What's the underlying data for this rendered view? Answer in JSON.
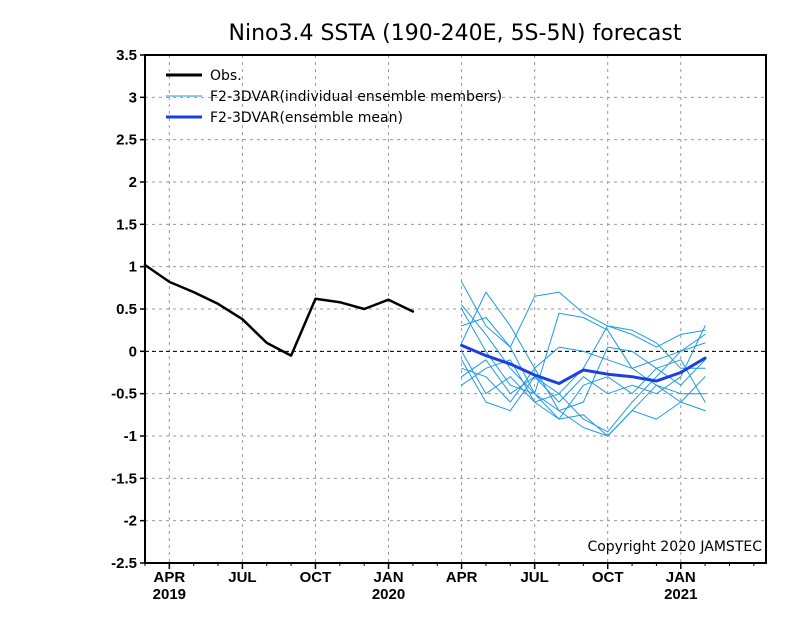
{
  "chart_data": {
    "type": "line",
    "title": "Nino3.4 SSTA (190-240E, 5S-5N) forecast",
    "copyright": "Copyright 2020 JAMSTEC",
    "xlabel": "",
    "ylabel": "",
    "ylim": [
      -2.5,
      3.5
    ],
    "y_ticks": [
      -2.5,
      -2,
      -1.5,
      -1,
      -0.5,
      0,
      0.5,
      1,
      1.5,
      2,
      2.5,
      3,
      3.5
    ],
    "y_tick_labels": [
      "-2.5",
      "-2",
      "-1.5",
      "-1",
      "-0.5",
      "0",
      "0.5",
      "1",
      "1.5",
      "2",
      "2.5",
      "3",
      "3.5"
    ],
    "x_unit": "months since Jan 2019",
    "xlim": [
      2,
      27.5
    ],
    "x_ticks": [
      {
        "x": 3,
        "month": "APR",
        "year": "2019"
      },
      {
        "x": 6,
        "month": "JUL",
        "year": ""
      },
      {
        "x": 9,
        "month": "OCT",
        "year": ""
      },
      {
        "x": 12,
        "month": "JAN",
        "year": "2020"
      },
      {
        "x": 15,
        "month": "APR",
        "year": ""
      },
      {
        "x": 18,
        "month": "JUL",
        "year": ""
      },
      {
        "x": 21,
        "month": "OCT",
        "year": ""
      },
      {
        "x": 24,
        "month": "JAN",
        "year": "2021"
      }
    ],
    "grid": true,
    "zero_line": true,
    "legend": {
      "position": "top-left",
      "entries": [
        {
          "label": "Obs.",
          "color": "#000000",
          "style": "thick"
        },
        {
          "label": "F2-3DVAR(individual ensemble members)",
          "color": "#1e9be6",
          "style": "thin"
        },
        {
          "label": "F2-3DVAR(ensemble mean)",
          "color": "#1c3fe0",
          "style": "thick"
        }
      ]
    },
    "series": [
      {
        "name": "Obs.",
        "role": "obs",
        "color": "#000000",
        "x": [
          2,
          3,
          4,
          5,
          6,
          7,
          8,
          9,
          10,
          11,
          12,
          13
        ],
        "y": [
          1.02,
          0.82,
          0.7,
          0.56,
          0.38,
          0.1,
          -0.05,
          0.62,
          0.58,
          0.5,
          0.61,
          0.47
        ]
      },
      {
        "name": "member 1",
        "role": "member",
        "color": "#1e9be6",
        "x": [
          15,
          16,
          17,
          18,
          19,
          20,
          21,
          22,
          23,
          24,
          25
        ],
        "y": [
          0.82,
          0.3,
          0.05,
          -0.5,
          -0.8,
          -0.75,
          -1.0,
          -0.7,
          -0.8,
          -0.6,
          -0.3
        ]
      },
      {
        "name": "member 2",
        "role": "member",
        "color": "#1e9be6",
        "x": [
          15,
          16,
          17,
          18,
          19,
          20,
          21,
          22,
          23,
          24,
          25
        ],
        "y": [
          0.55,
          0.2,
          -0.2,
          -0.5,
          -0.7,
          -0.6,
          0.05,
          0.0,
          -0.2,
          -0.4,
          -0.1
        ]
      },
      {
        "name": "member 3",
        "role": "member",
        "color": "#1e9be6",
        "x": [
          15,
          16,
          17,
          18,
          19,
          20,
          21,
          22,
          23,
          24,
          25
        ],
        "y": [
          0.3,
          0.4,
          0.05,
          0.65,
          0.7,
          0.45,
          0.3,
          0.2,
          0.05,
          0.2,
          0.25
        ]
      },
      {
        "name": "member 4",
        "role": "member",
        "color": "#1e9be6",
        "x": [
          15,
          16,
          17,
          18,
          19,
          20,
          21,
          22,
          23,
          24,
          25
        ],
        "y": [
          0.1,
          0.7,
          0.3,
          -0.2,
          -0.7,
          -0.9,
          -1.0,
          -0.7,
          -0.4,
          -0.5,
          -0.5
        ]
      },
      {
        "name": "member 5",
        "role": "member",
        "color": "#1e9be6",
        "x": [
          15,
          16,
          17,
          18,
          19,
          20,
          21,
          22,
          23,
          24,
          25
        ],
        "y": [
          0.0,
          -0.5,
          -0.3,
          -0.6,
          -0.5,
          -0.2,
          0.3,
          0.25,
          0.1,
          -0.2,
          -0.2
        ]
      },
      {
        "name": "member 6",
        "role": "member",
        "color": "#1e9be6",
        "x": [
          15,
          16,
          17,
          18,
          19,
          20,
          21,
          22,
          23,
          24,
          25
        ],
        "y": [
          -0.2,
          -0.3,
          -0.6,
          -0.2,
          0.05,
          0.0,
          -0.1,
          -0.2,
          -0.4,
          -0.6,
          -0.7
        ]
      },
      {
        "name": "member 7",
        "role": "member",
        "color": "#1e9be6",
        "x": [
          15,
          16,
          17,
          18,
          19,
          20,
          21,
          22,
          23,
          24,
          25
        ],
        "y": [
          -0.3,
          -0.1,
          -0.5,
          -0.3,
          -0.5,
          -0.8,
          -0.95,
          -0.6,
          -0.3,
          0.0,
          0.1
        ]
      },
      {
        "name": "member 8",
        "role": "member",
        "color": "#1e9be6",
        "x": [
          15,
          16,
          17,
          18,
          19,
          20,
          21,
          22,
          23,
          24,
          25
        ],
        "y": [
          -0.4,
          -0.2,
          -0.1,
          -0.6,
          -0.8,
          -0.4,
          -0.3,
          -0.5,
          -0.2,
          -0.1,
          -0.6
        ]
      },
      {
        "name": "member 9",
        "role": "member",
        "color": "#1e9be6",
        "x": [
          15,
          16,
          17,
          18,
          19,
          20,
          21,
          22,
          23,
          24,
          25
        ],
        "y": [
          0.5,
          0.0,
          -0.4,
          -0.5,
          0.45,
          0.4,
          0.25,
          -0.2,
          -0.1,
          0.0,
          0.2
        ]
      },
      {
        "name": "member 10",
        "role": "member",
        "color": "#1e9be6",
        "x": [
          15,
          16,
          17,
          18,
          19,
          20,
          21,
          22,
          23,
          24,
          25
        ],
        "y": [
          -0.1,
          -0.6,
          -0.7,
          -0.3,
          -0.6,
          -0.3,
          -0.5,
          -0.4,
          -0.5,
          -0.3,
          0.3
        ]
      },
      {
        "name": "F2-3DVAR(ensemble mean)",
        "role": "mean",
        "color": "#1c3fe0",
        "x": [
          15,
          16,
          17,
          18,
          19,
          20,
          21,
          22,
          23,
          24,
          25
        ],
        "y": [
          0.07,
          -0.05,
          -0.15,
          -0.28,
          -0.38,
          -0.22,
          -0.27,
          -0.3,
          -0.35,
          -0.25,
          -0.08
        ]
      }
    ]
  }
}
